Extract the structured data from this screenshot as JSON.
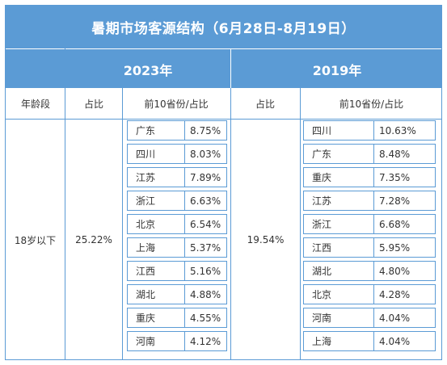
{
  "title": "暑期市场客源结构（6月28日-8月19日）",
  "years": [
    "2023年",
    "2019年"
  ],
  "headers": {
    "age": "年龄段",
    "share": "占比",
    "top10": "前10省份/占比"
  },
  "rows": [
    {
      "age": "18岁以下",
      "share_2023": "25.22%",
      "share_2019": "19.54%",
      "top10_2023": [
        {
          "prov": "广东",
          "pct": "8.75%"
        },
        {
          "prov": "四川",
          "pct": "8.03%"
        },
        {
          "prov": "江苏",
          "pct": "7.89%"
        },
        {
          "prov": "浙江",
          "pct": "6.63%"
        },
        {
          "prov": "北京",
          "pct": "6.54%"
        },
        {
          "prov": "上海",
          "pct": "5.37%"
        },
        {
          "prov": "江西",
          "pct": "5.16%"
        },
        {
          "prov": "湖北",
          "pct": "4.88%"
        },
        {
          "prov": "重庆",
          "pct": "4.55%"
        },
        {
          "prov": "河南",
          "pct": "4.12%"
        }
      ],
      "top10_2019": [
        {
          "prov": "四川",
          "pct": "10.63%"
        },
        {
          "prov": "广东",
          "pct": "8.48%"
        },
        {
          "prov": "重庆",
          "pct": "7.35%"
        },
        {
          "prov": "江苏",
          "pct": "7.28%"
        },
        {
          "prov": "浙江",
          "pct": "6.68%"
        },
        {
          "prov": "江西",
          "pct": "5.95%"
        },
        {
          "prov": "湖北",
          "pct": "4.80%"
        },
        {
          "prov": "北京",
          "pct": "4.28%"
        },
        {
          "prov": "河南",
          "pct": "4.04%"
        },
        {
          "prov": "上海",
          "pct": "4.04%"
        }
      ]
    }
  ],
  "colors": {
    "header_bg": "#5b9bd5",
    "border": "#5b9bd5",
    "text": "#333333"
  }
}
